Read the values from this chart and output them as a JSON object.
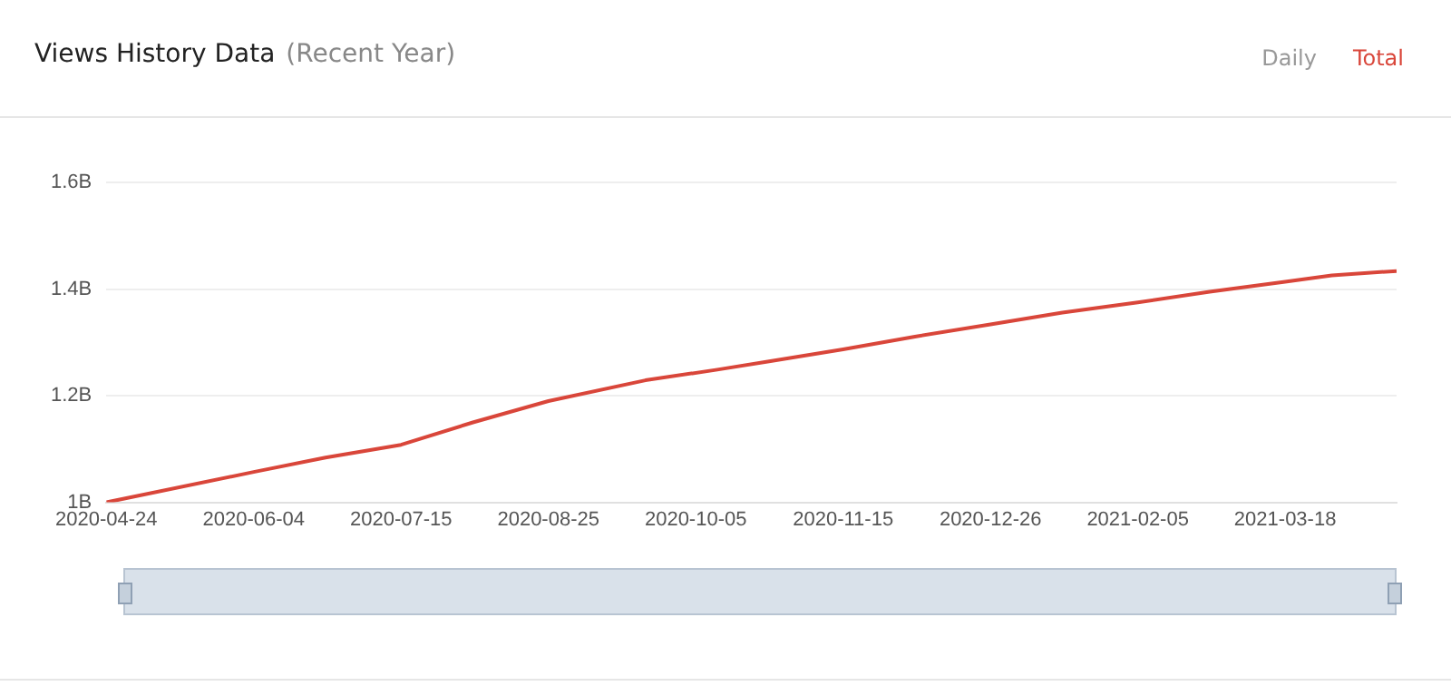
{
  "chart_data": {
    "type": "line",
    "title": "Views History Data",
    "subtitle": "(Recent Year)",
    "annotations": [
      "Daily",
      "Total"
    ],
    "x": [
      "2020-04-24",
      "2020-06-04",
      "2020-06-24",
      "2020-07-15",
      "2020-08-04",
      "2020-08-25",
      "2020-09-21",
      "2020-10-11",
      "2020-10-25",
      "2020-11-15",
      "2020-12-05",
      "2020-12-26",
      "2021-01-15",
      "2021-02-05",
      "2021-02-25",
      "2021-03-18",
      "2021-03-31",
      "2021-04-18"
    ],
    "series": [
      {
        "color": "#d9463a",
        "values": [
          1.0,
          1.057,
          1.084,
          1.108,
          1.15,
          1.19,
          1.229,
          1.249,
          1.264,
          1.287,
          1.311,
          1.334,
          1.356,
          1.375,
          1.395,
          1.414,
          1.426,
          1.434
        ]
      }
    ],
    "xlim": [
      "2020-04-24",
      "2021-04-18"
    ],
    "xticks": [
      "2020-04-24",
      "2020-06-04",
      "2020-07-15",
      "2020-08-25",
      "2020-10-05",
      "2020-11-15",
      "2020-12-26",
      "2021-02-05",
      "2021-03-18"
    ],
    "ylim": [
      1,
      1.6
    ],
    "yticks": [
      {
        "value": 1,
        "label": "1B"
      },
      {
        "value": 1.2,
        "label": "1.2B"
      },
      {
        "value": 1.4,
        "label": "1.4B"
      },
      {
        "value": 1.6,
        "label": "1.6B"
      }
    ],
    "grid": "y",
    "marker": "none",
    "line_style": "solid",
    "legend": false
  }
}
